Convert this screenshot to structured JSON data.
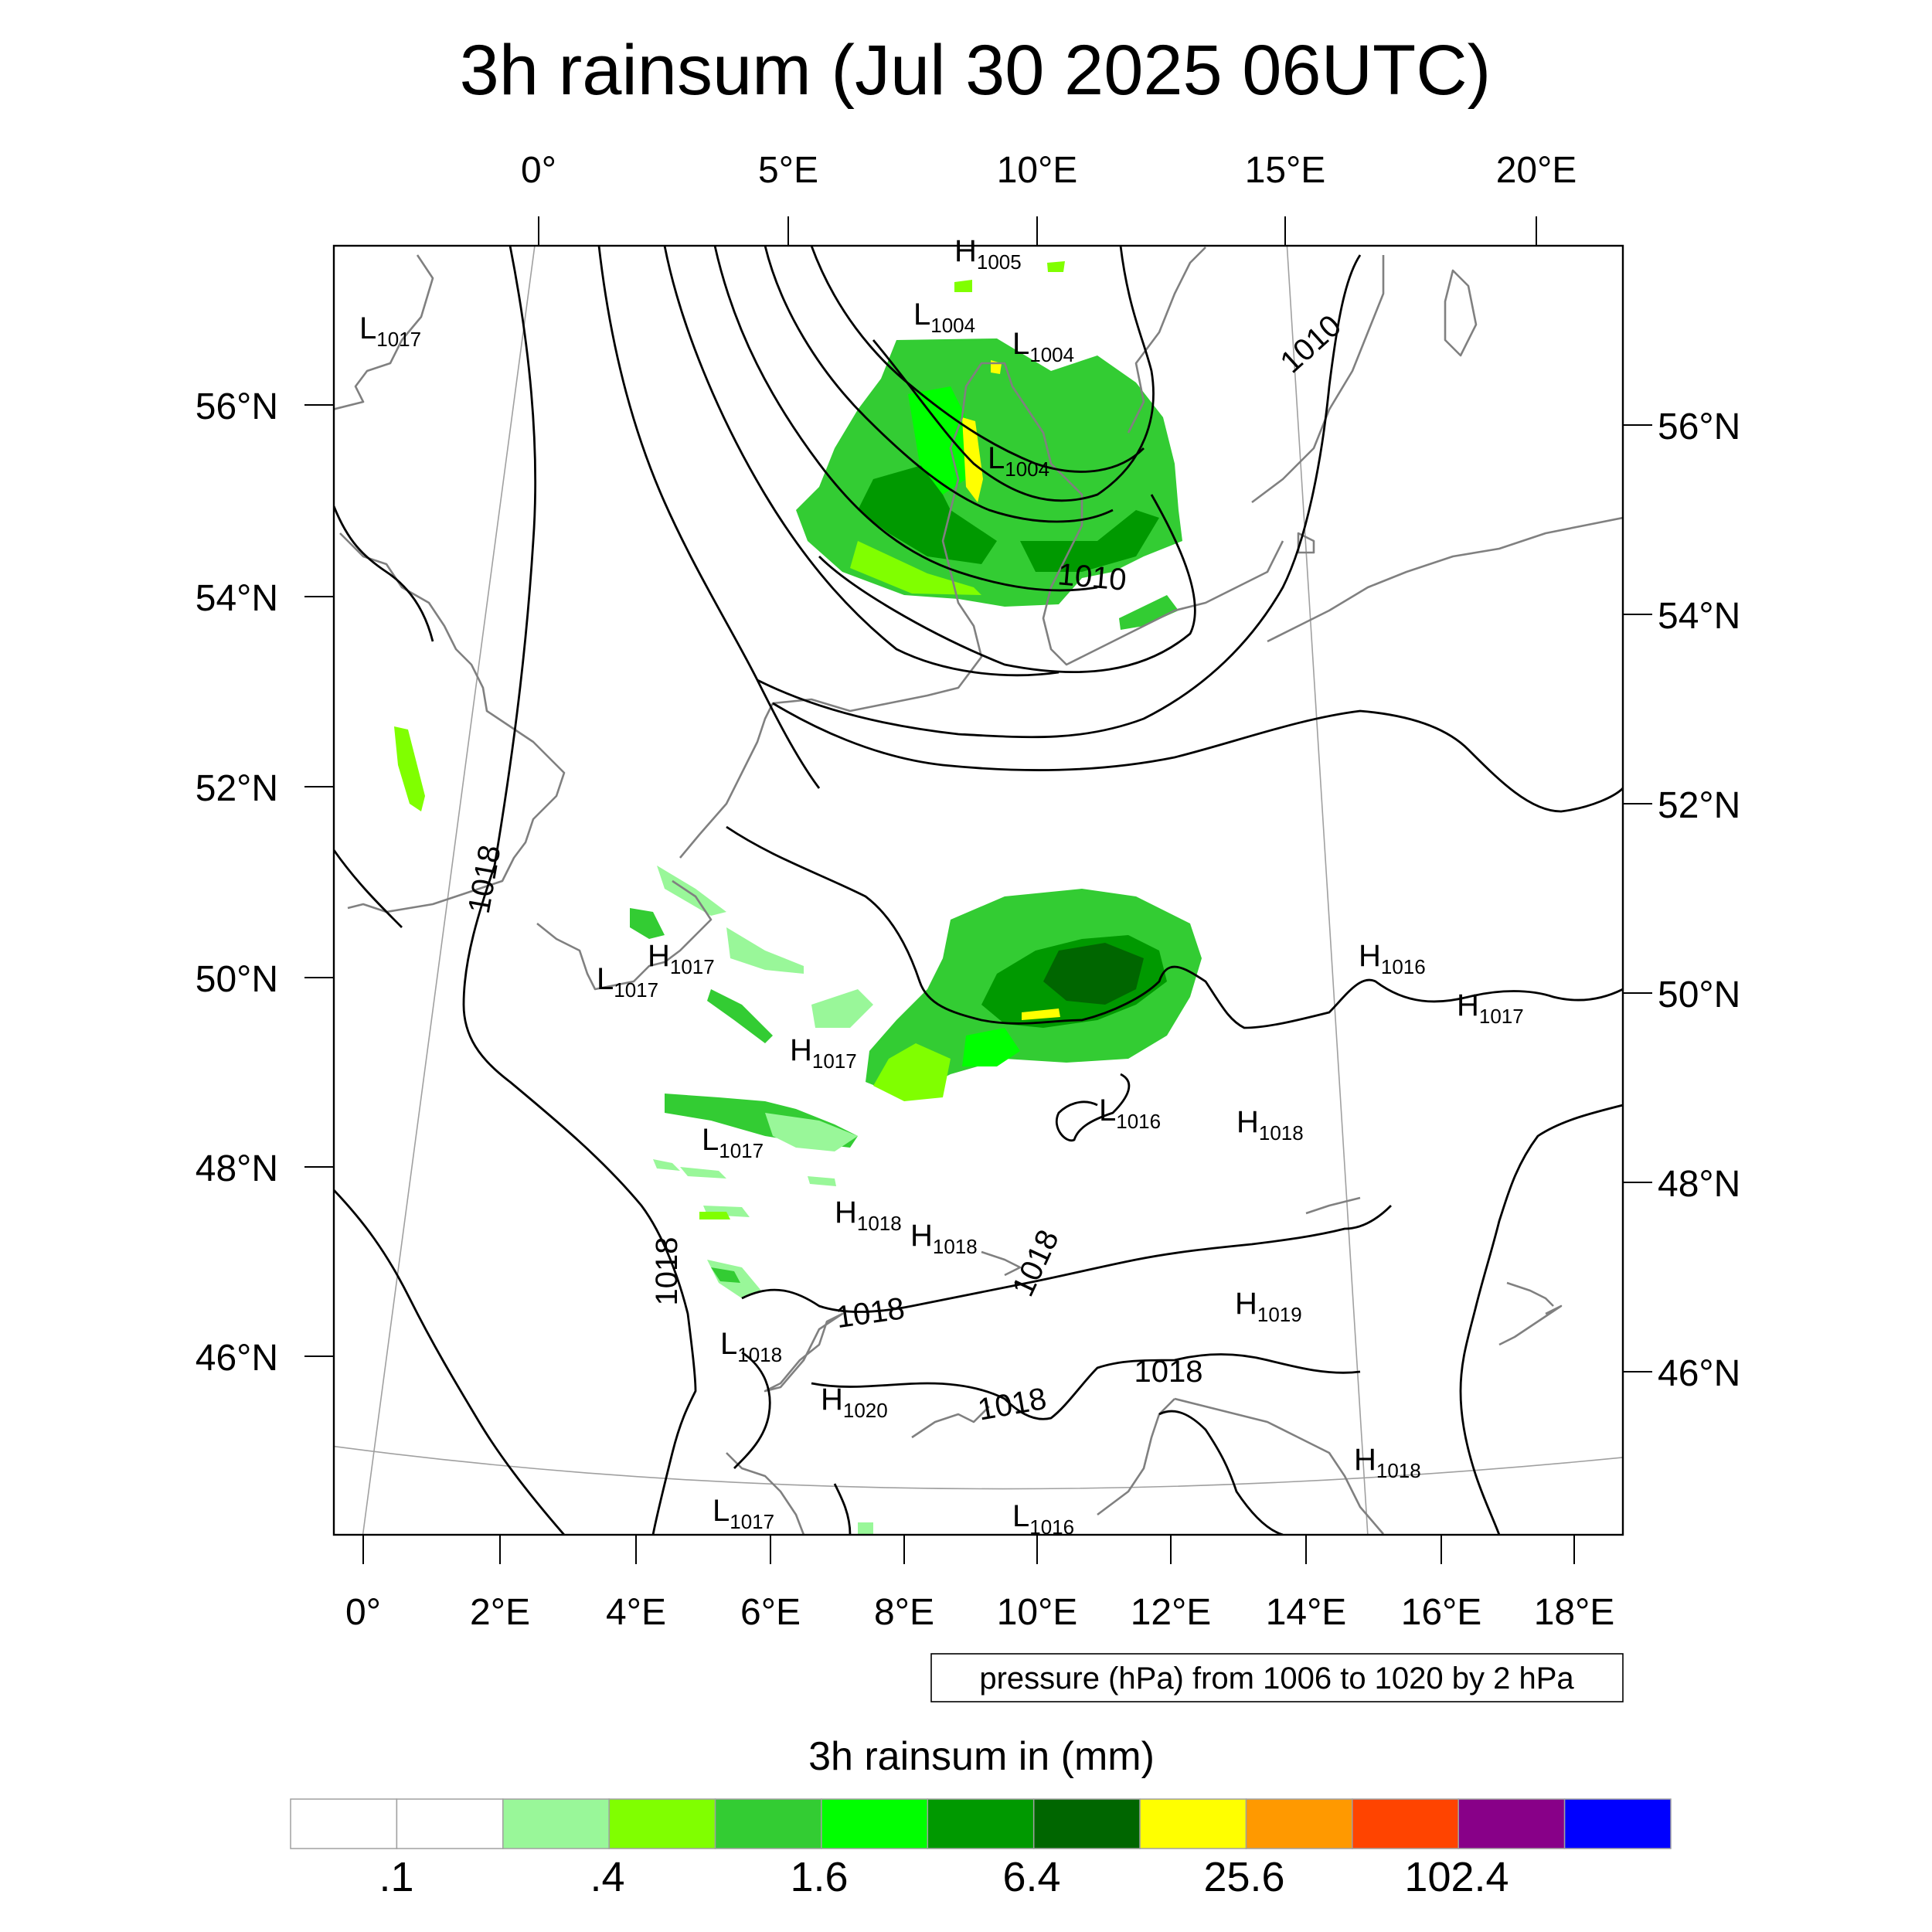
{
  "title": "3h rainsum (Jul 30 2025 06UTC)",
  "top_lon_ticks": [
    "0°",
    "5°E",
    "10°E",
    "15°E",
    "20°E"
  ],
  "bottom_lon_ticks": [
    "0°",
    "2°E",
    "4°E",
    "6°E",
    "8°E",
    "10°E",
    "12°E",
    "14°E",
    "16°E",
    "18°E"
  ],
  "left_lat_ticks": [
    "56°N",
    "54°N",
    "52°N",
    "50°N",
    "48°N",
    "46°N"
  ],
  "right_lat_ticks": [
    "56°N",
    "54°N",
    "52°N",
    "50°N",
    "48°N",
    "46°N"
  ],
  "pressure_centers": [
    {
      "type": "H",
      "value": "1005"
    },
    {
      "type": "L",
      "value": "1017"
    },
    {
      "type": "L",
      "value": "1004"
    },
    {
      "type": "L",
      "value": "1004"
    },
    {
      "type": "L",
      "value": "1004"
    },
    {
      "type": "H",
      "value": "1017"
    },
    {
      "type": "L",
      "value": "1017"
    },
    {
      "type": "H",
      "value": "1017"
    },
    {
      "type": "L",
      "value": "1017"
    },
    {
      "type": "H",
      "value": "1016"
    },
    {
      "type": "H",
      "value": "1017"
    },
    {
      "type": "L",
      "value": "1016"
    },
    {
      "type": "H",
      "value": "1018"
    },
    {
      "type": "H",
      "value": "1018"
    },
    {
      "type": "H",
      "value": "1018"
    },
    {
      "type": "H",
      "value": "1019"
    },
    {
      "type": "L",
      "value": "1018"
    },
    {
      "type": "H",
      "value": "1020"
    },
    {
      "type": "H",
      "value": "1018"
    },
    {
      "type": "L",
      "value": "1017"
    },
    {
      "type": "L",
      "value": "1016"
    }
  ],
  "isobar_labels": [
    "1010",
    "1010",
    "1018",
    "1018",
    "1018",
    "1018",
    "1018",
    "1018"
  ],
  "contour_info": "pressure (hPa) from 1006 to 1020 by 2 hPa",
  "colorbar": {
    "title": "3h rainsum in (mm)",
    "tick_labels": [
      ".1",
      ".4",
      "1.6",
      "6.4",
      "25.6",
      "102.4"
    ],
    "colors": [
      "#ffffff",
      "#ffffff",
      "#99f799",
      "#80ff00",
      "#33cc33",
      "#00ff00",
      "#009900",
      "#006600",
      "#ffff00",
      "#ff9900",
      "#ff4400",
      "#880088",
      "#0000ff"
    ]
  },
  "colors": {
    "coastline": "#808080",
    "isobar": "#000000",
    "rain_light": "#99f799",
    "rain_lime": "#80ff00",
    "rain_mid": "#33cc33",
    "rain_bright": "#00ff00",
    "rain_dark": "#009900",
    "rain_darker": "#006600",
    "rain_yellow": "#ffff00"
  }
}
